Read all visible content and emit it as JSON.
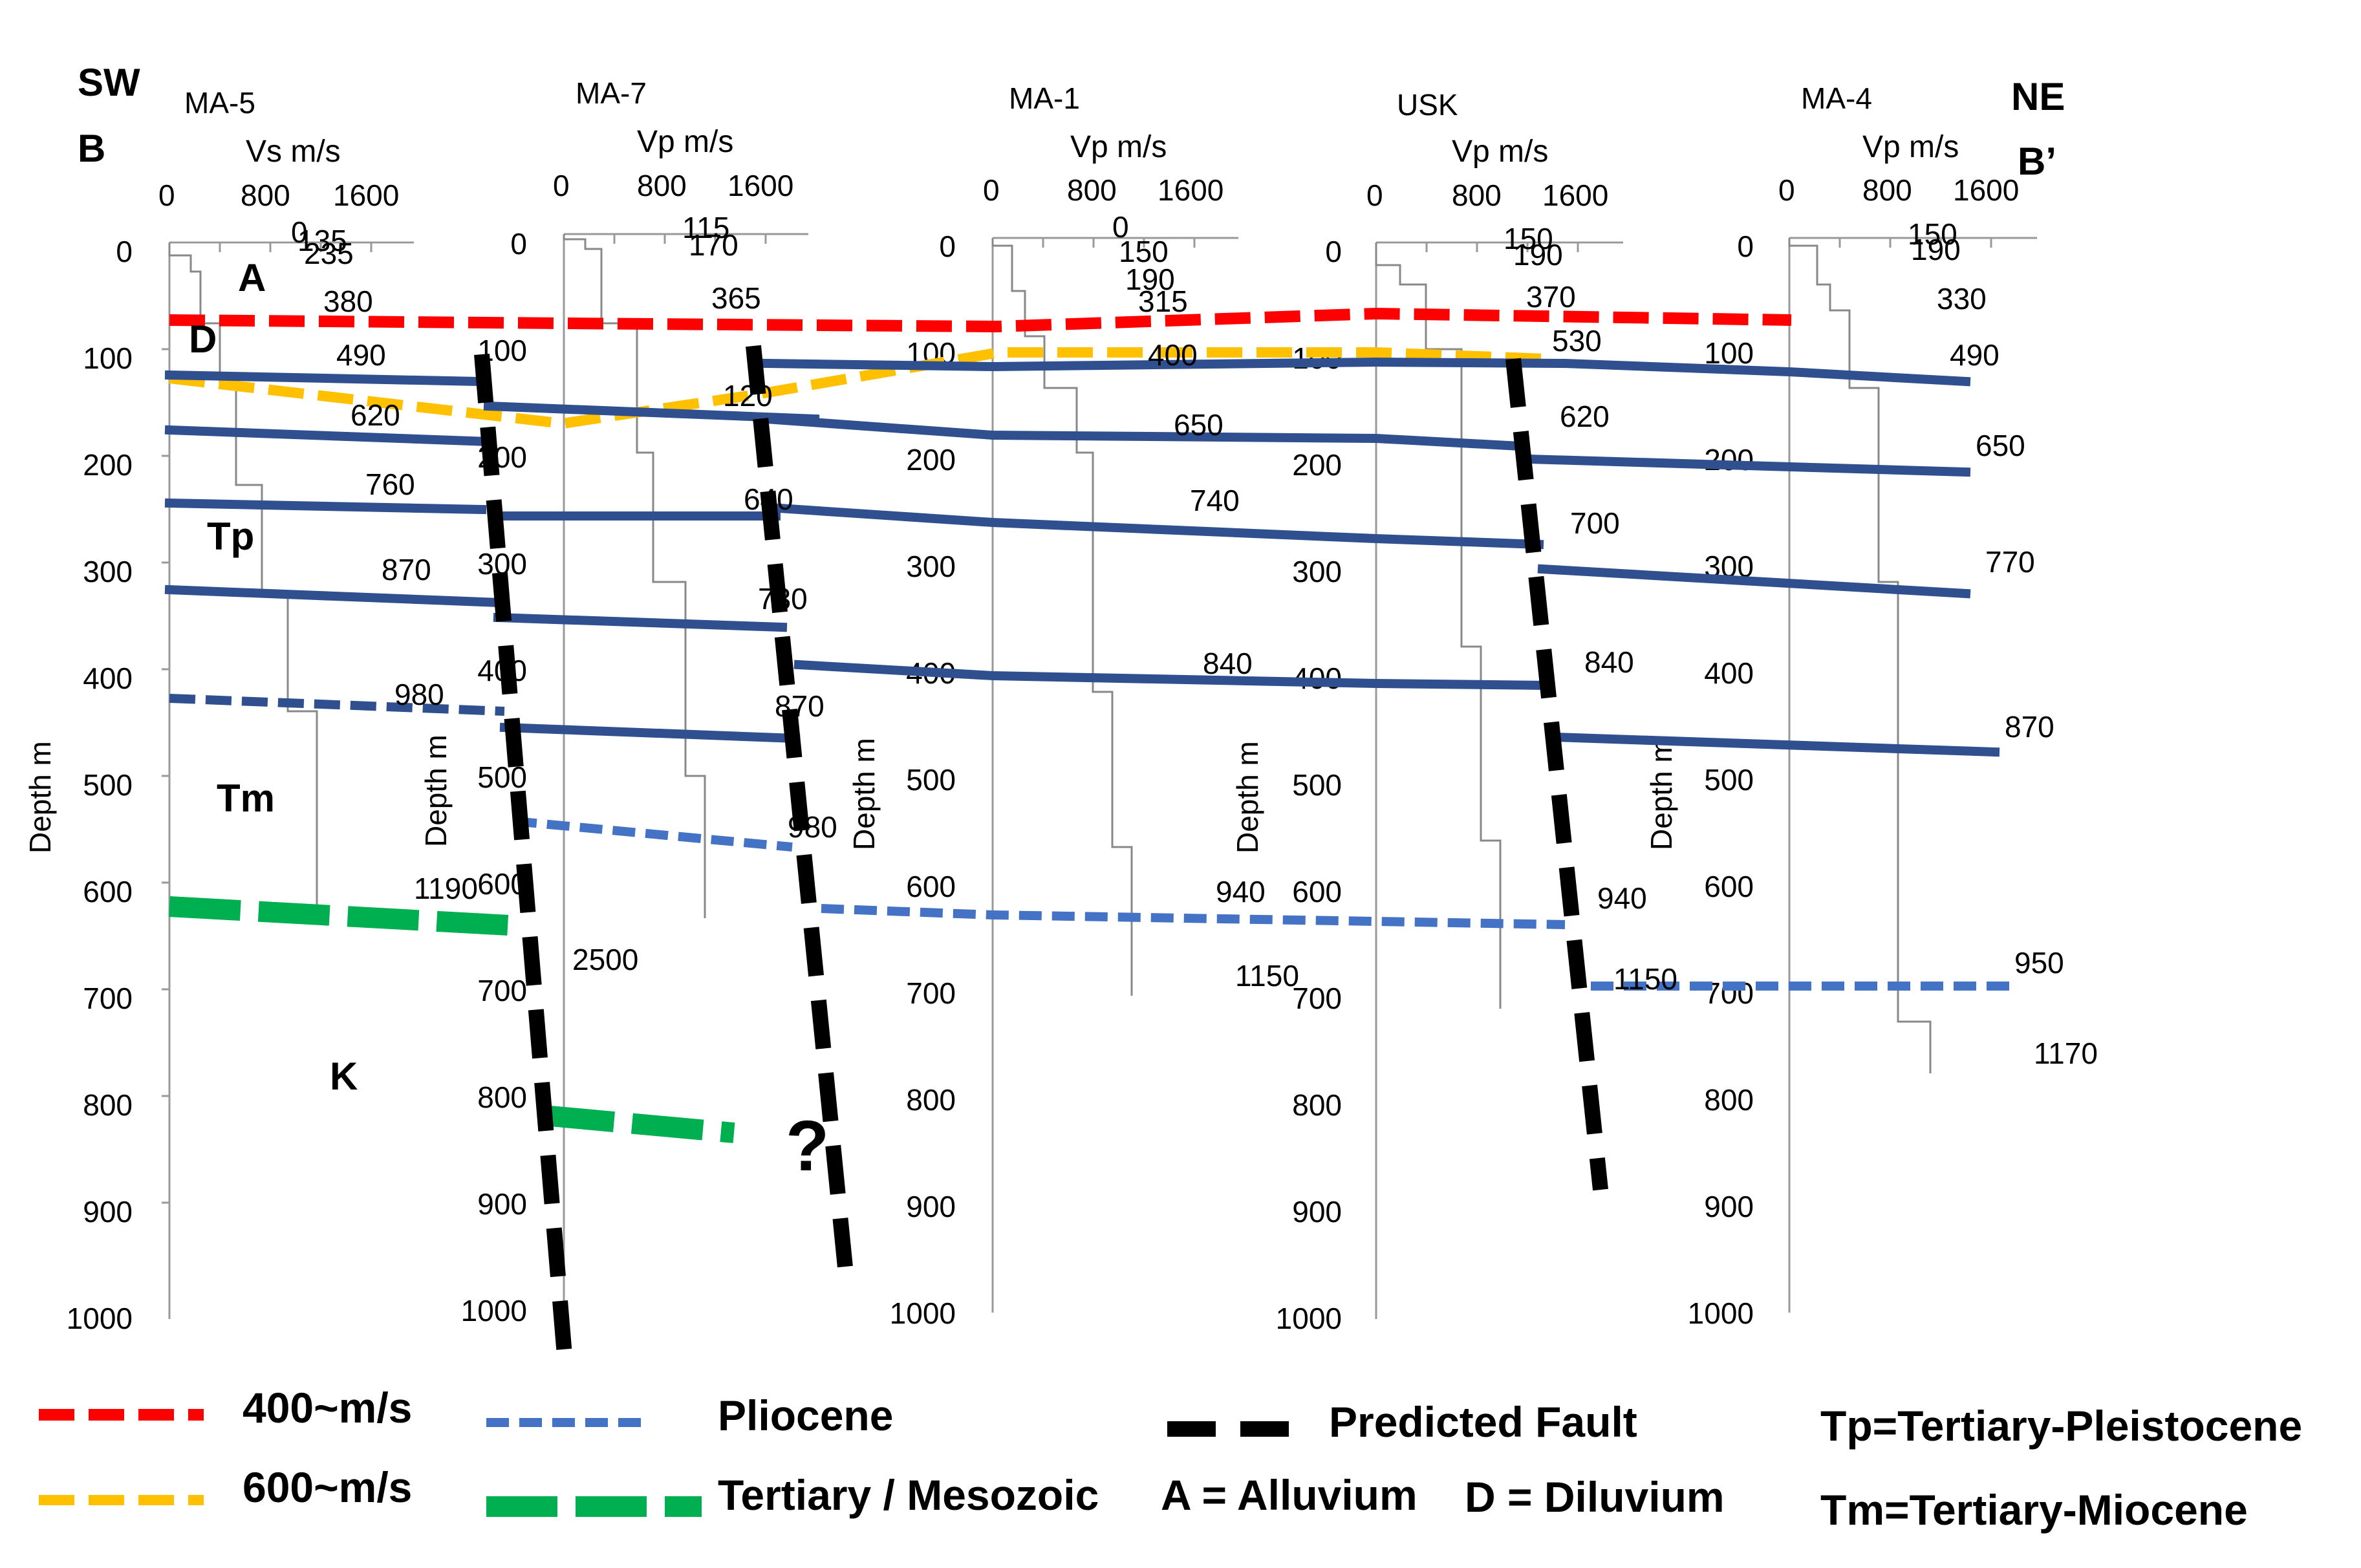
{
  "direction": {
    "sw": "SW",
    "ne": "NE",
    "left_section": "B",
    "right_section": "B’"
  },
  "axes": {
    "depth_label": "Depth m",
    "depth_ticks": [
      "0",
      "100",
      "200",
      "300",
      "400",
      "500",
      "600",
      "700",
      "800",
      "900",
      "1000"
    ],
    "velocity_ticks": [
      "0",
      "800",
      "1600"
    ]
  },
  "wells": [
    {
      "name": "MA-5",
      "vel_label": "Vs m/s",
      "values": [
        "0",
        "135",
        "235",
        "380",
        "490",
        "620",
        "760",
        "870",
        "980",
        "1190"
      ]
    },
    {
      "name": "MA-7",
      "vel_label": "Vp m/s",
      "values": [
        "115",
        "170",
        "365",
        "120",
        "640",
        "730",
        "870",
        "980",
        "2500"
      ]
    },
    {
      "name": "MA-1",
      "vel_label": "Vp m/s",
      "values": [
        "0",
        "150",
        "190",
        "315",
        "400",
        "650",
        "740",
        "840",
        "940",
        "1150"
      ]
    },
    {
      "name": "USK",
      "vel_label": "Vp m/s",
      "values": [
        "150",
        "190",
        "370",
        "530",
        "620",
        "700",
        "840",
        "940",
        "1150"
      ]
    },
    {
      "name": "MA-4",
      "vel_label": "Vp m/s",
      "values": [
        "150",
        "190",
        "330",
        "490",
        "650",
        "770",
        "870",
        "950",
        "1170"
      ]
    }
  ],
  "units": {
    "A": "A",
    "D": "D",
    "Tp": "Tp",
    "Tm": "Tm",
    "K": "K",
    "question": "?"
  },
  "legend": {
    "red": "400~m/s",
    "yellow": "600~m/s",
    "blue": "Pliocene",
    "green": "Tertiary / Mesozoic",
    "fault": "Predicted Fault",
    "alluvium": "A = Alluvium",
    "diluvium": "D = Diluvium",
    "tp": "Tp=Tertiary-Pleistocene",
    "tm": "Tm=Tertiary-Miocene"
  },
  "colors": {
    "red": "#ff0000",
    "yellow": "#ffc000",
    "navy": "#2f4f8f",
    "dash_blue": "#4472c4",
    "green": "#00b050",
    "fault": "#000000",
    "axis": "#999999"
  }
}
